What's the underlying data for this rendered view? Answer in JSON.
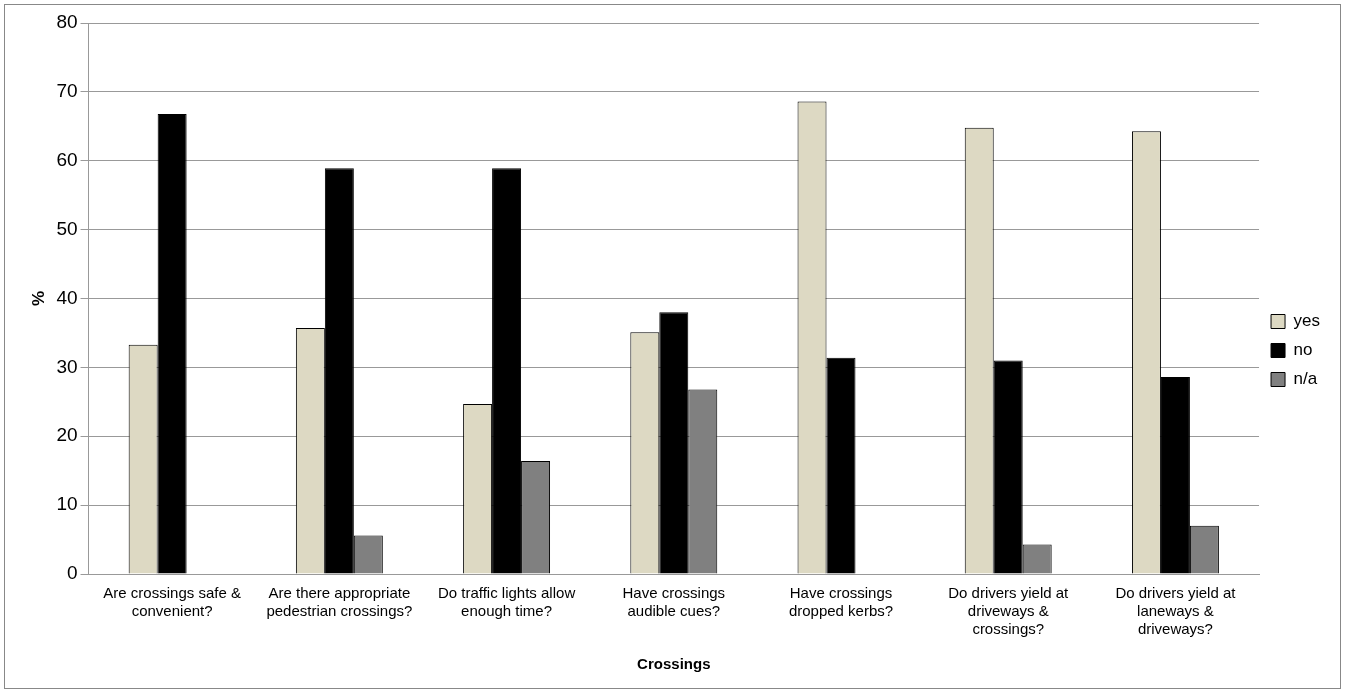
{
  "chart_data": {
    "type": "bar",
    "xlabel": "Crossings",
    "ylabel": "%",
    "categories": [
      "Are crossings safe & convenient?",
      "Are there appropriate pedestrian crossings?",
      "Do traffic lights allow enough time?",
      "Have crossings audible cues?",
      "Have crossings dropped kerbs?",
      "Do drivers yield at driveways & crossings?",
      "Do drivers yield at laneways & driveways?"
    ],
    "series": [
      {
        "name": "yes",
        "color": "#ddd9c3",
        "values": [
          33.3,
          35.7,
          24.7,
          35.1,
          68.6,
          64.8,
          64.3
        ]
      },
      {
        "name": "no",
        "color": "#000000",
        "values": [
          66.8,
          58.9,
          58.9,
          38.0,
          31.4,
          31.0,
          28.6
        ]
      },
      {
        "name": "n/a",
        "color": "#808080",
        "values": [
          0,
          5.6,
          16.4,
          26.8,
          0,
          4.3,
          7.0
        ]
      }
    ],
    "ylim": [
      0,
      80
    ],
    "yticks": [
      0,
      10,
      20,
      30,
      40,
      50,
      60,
      70,
      80
    ],
    "grid": "y",
    "legend": "right"
  }
}
